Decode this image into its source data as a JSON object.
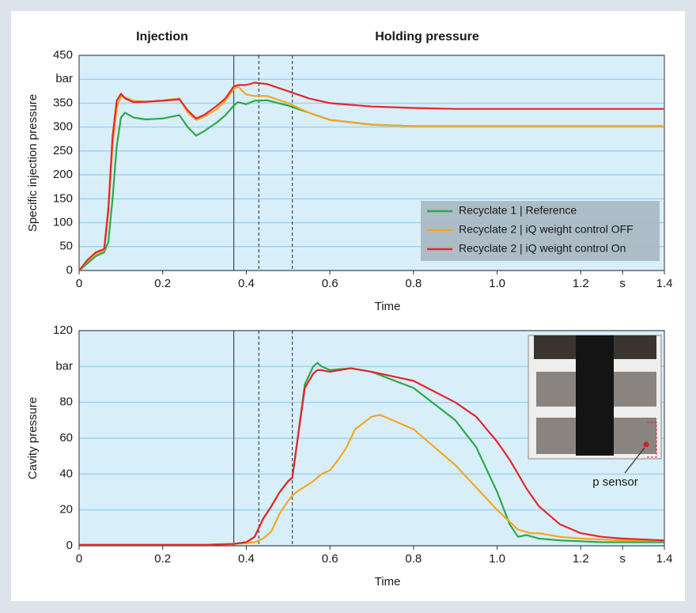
{
  "chart_data": [
    {
      "type": "line",
      "annotations": [
        "Injection",
        "Holding pressure"
      ],
      "ylabel": "Specific injection pressure",
      "xlabel": "Time",
      "xlim": [
        0,
        1.4
      ],
      "xticks": [
        0,
        0.2,
        0.4,
        0.6,
        0.8,
        {
          "value": 1,
          "label": "1.0"
        },
        1.2,
        {
          "value": 1.3,
          "label": "s"
        },
        1.4
      ],
      "ylim": [
        0,
        450
      ],
      "yticks": [
        0,
        50,
        100,
        150,
        200,
        250,
        300,
        350,
        {
          "value": 400,
          "label": "bar"
        },
        450
      ],
      "grid": true,
      "legend": "lower right",
      "vlines": [
        {
          "x": 0.37,
          "style": "solid"
        },
        {
          "x": 0.43,
          "style": "dashed"
        },
        {
          "x": 0.51,
          "style": "dashed"
        }
      ],
      "series": [
        {
          "name": "Recyclate 1 | Reference",
          "color": "#2ca84a",
          "x": [
            0,
            0.02,
            0.04,
            0.06,
            0.07,
            0.08,
            0.09,
            0.1,
            0.11,
            0.13,
            0.16,
            0.2,
            0.24,
            0.26,
            0.28,
            0.3,
            0.33,
            0.35,
            0.37,
            0.38,
            0.4,
            0.42,
            0.45,
            0.5,
            0.55,
            0.6,
            0.7,
            0.8,
            0.9,
            1.0,
            1.2,
            1.4
          ],
          "values": [
            0,
            15,
            30,
            38,
            60,
            150,
            260,
            320,
            330,
            320,
            316,
            318,
            325,
            300,
            282,
            292,
            310,
            325,
            345,
            352,
            348,
            355,
            356,
            345,
            330,
            315,
            305,
            302,
            302,
            302,
            302,
            302
          ]
        },
        {
          "name": "Recyclate 2 | iQ weight control OFF",
          "color": "#f5a623",
          "x": [
            0,
            0.02,
            0.04,
            0.06,
            0.07,
            0.08,
            0.09,
            0.1,
            0.11,
            0.13,
            0.16,
            0.2,
            0.24,
            0.26,
            0.28,
            0.3,
            0.33,
            0.35,
            0.37,
            0.38,
            0.4,
            0.42,
            0.45,
            0.5,
            0.55,
            0.6,
            0.7,
            0.8,
            0.9,
            1.0,
            1.2,
            1.4
          ],
          "values": [
            0,
            20,
            35,
            42,
            120,
            260,
            340,
            365,
            362,
            355,
            353,
            356,
            360,
            330,
            315,
            322,
            338,
            355,
            380,
            385,
            368,
            365,
            365,
            350,
            330,
            315,
            305,
            302,
            302,
            302,
            302,
            302
          ]
        },
        {
          "name": "Recyclate 2 | iQ weight control On",
          "color": "#e5262a",
          "x": [
            0,
            0.02,
            0.04,
            0.06,
            0.07,
            0.08,
            0.09,
            0.1,
            0.11,
            0.13,
            0.16,
            0.2,
            0.24,
            0.26,
            0.28,
            0.3,
            0.33,
            0.35,
            0.37,
            0.38,
            0.4,
            0.42,
            0.45,
            0.5,
            0.55,
            0.6,
            0.7,
            0.8,
            0.9,
            1.0,
            1.2,
            1.4
          ],
          "values": [
            0,
            22,
            38,
            45,
            130,
            280,
            355,
            370,
            360,
            352,
            353,
            355,
            358,
            335,
            318,
            326,
            345,
            360,
            385,
            388,
            388,
            393,
            390,
            375,
            360,
            350,
            343,
            340,
            338,
            338,
            338,
            338
          ]
        }
      ]
    },
    {
      "type": "line",
      "ylabel": "Cavity pressure",
      "xlabel": "Time",
      "xlim": [
        0,
        1.4
      ],
      "xticks": [
        0,
        0.2,
        0.4,
        0.6,
        0.8,
        {
          "value": 1,
          "label": "1.0"
        },
        1.2,
        {
          "value": 1.3,
          "label": "s"
        },
        1.4
      ],
      "ylim": [
        0,
        120
      ],
      "yticks": [
        0,
        20,
        40,
        60,
        80,
        {
          "value": 100,
          "label": "bar"
        },
        120
      ],
      "grid": true,
      "inset_label": "p sensor",
      "vlines": [
        {
          "x": 0.37,
          "style": "solid"
        },
        {
          "x": 0.43,
          "style": "dashed"
        },
        {
          "x": 0.51,
          "style": "dashed"
        }
      ],
      "series": [
        {
          "name": "Recyclate 1 | Reference",
          "color": "#2ca84a",
          "x": [
            0,
            0.3,
            0.37,
            0.4,
            0.42,
            0.43,
            0.44,
            0.46,
            0.48,
            0.5,
            0.51,
            0.52,
            0.54,
            0.56,
            0.57,
            0.58,
            0.6,
            0.65,
            0.7,
            0.8,
            0.9,
            0.95,
            1.0,
            1.03,
            1.05,
            1.07,
            1.1,
            1.15,
            1.2,
            1.25,
            1.3,
            1.4
          ],
          "values": [
            0.5,
            0.5,
            1,
            2,
            5,
            10,
            15,
            22,
            30,
            36,
            38,
            55,
            90,
            100,
            102,
            100,
            98,
            99,
            97,
            88,
            70,
            55,
            30,
            12,
            5,
            6,
            4,
            3,
            2.5,
            2,
            2,
            2
          ]
        },
        {
          "name": "Recyclate 2 | iQ weight control OFF",
          "color": "#f5a623",
          "x": [
            0,
            0.3,
            0.37,
            0.4,
            0.42,
            0.43,
            0.44,
            0.46,
            0.48,
            0.5,
            0.51,
            0.52,
            0.54,
            0.56,
            0.57,
            0.58,
            0.6,
            0.62,
            0.64,
            0.66,
            0.7,
            0.72,
            0.8,
            0.9,
            1.0,
            1.05,
            1.08,
            1.1,
            1.15,
            1.2,
            1.3,
            1.4
          ],
          "values": [
            0.5,
            0.5,
            1,
            1.5,
            2,
            3,
            4,
            8,
            18,
            25,
            28,
            30,
            33,
            36,
            38,
            40,
            42,
            48,
            55,
            65,
            72,
            73,
            65,
            45,
            20,
            9,
            7,
            7,
            5,
            4,
            3,
            3
          ]
        },
        {
          "name": "Recyclate 2 | iQ weight control On",
          "color": "#e5262a",
          "x": [
            0,
            0.3,
            0.37,
            0.4,
            0.42,
            0.43,
            0.44,
            0.46,
            0.48,
            0.5,
            0.51,
            0.52,
            0.54,
            0.56,
            0.57,
            0.58,
            0.6,
            0.65,
            0.7,
            0.8,
            0.9,
            0.95,
            1.0,
            1.03,
            1.05,
            1.07,
            1.1,
            1.15,
            1.2,
            1.25,
            1.3,
            1.4
          ],
          "values": [
            0.5,
            0.5,
            1,
            2,
            5,
            10,
            15,
            22,
            30,
            36,
            38,
            55,
            88,
            96,
            98,
            98,
            97,
            99,
            97,
            92,
            80,
            72,
            58,
            48,
            40,
            32,
            22,
            12,
            7,
            5,
            4,
            3
          ]
        }
      ]
    }
  ]
}
